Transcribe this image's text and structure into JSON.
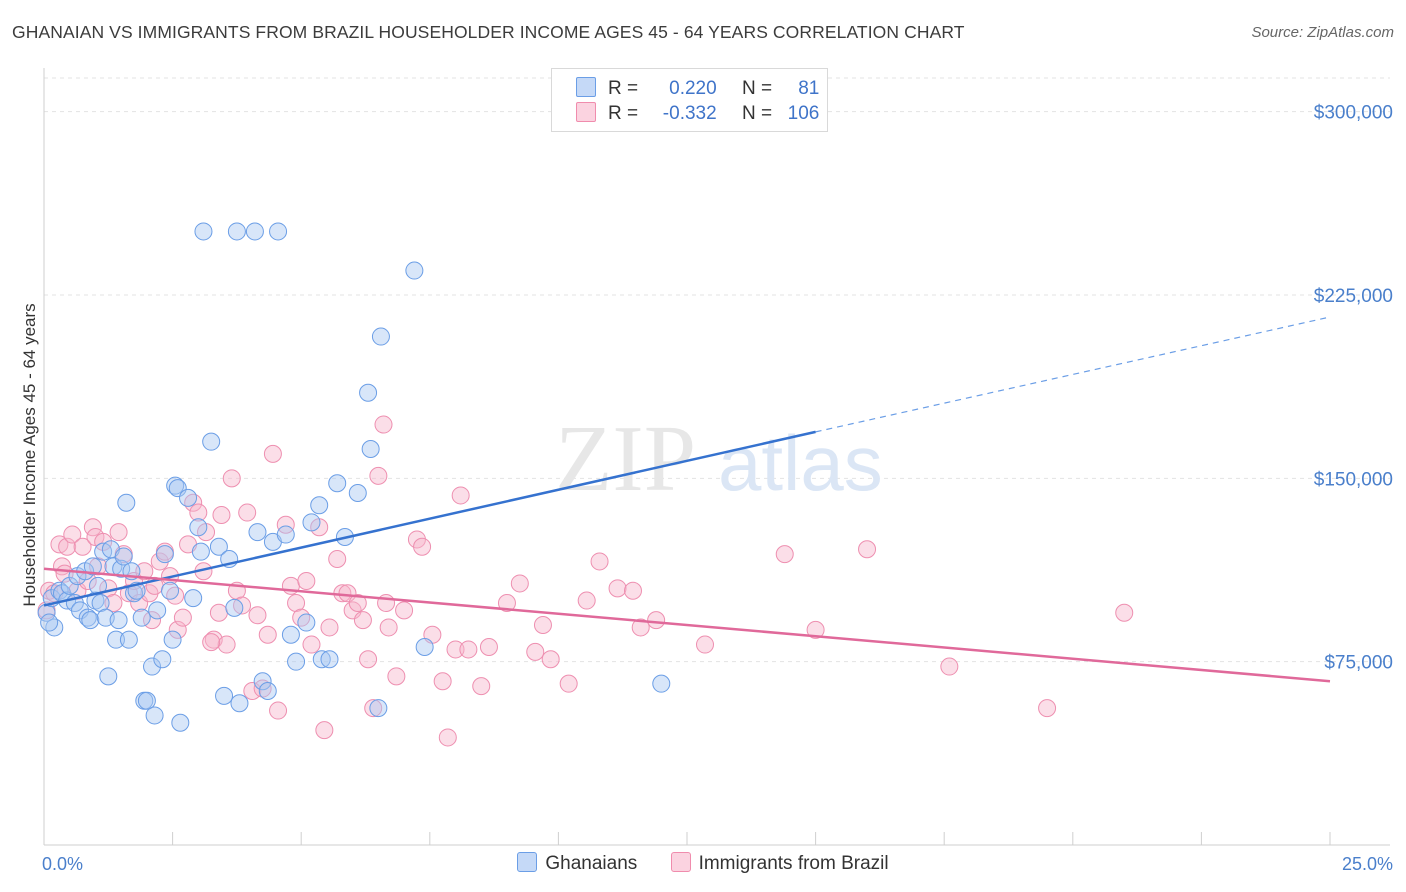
{
  "header": {
    "title": "GHANAIAN VS IMMIGRANTS FROM BRAZIL HOUSEHOLDER INCOME AGES 45 - 64 YEARS CORRELATION CHART",
    "source": "Source: ZipAtlas.com"
  },
  "watermark": {
    "zip": "ZIP",
    "atlas": "atlas"
  },
  "legend": {
    "rows": [
      {
        "r_label": "R =",
        "r_value": "0.220",
        "n_label": "N =",
        "n_value": "81",
        "color": "#a9c7f2"
      },
      {
        "r_label": "R =",
        "r_value": "-0.332",
        "n_label": "N =",
        "n_value": "106",
        "color": "#f7b6cb"
      }
    ]
  },
  "bottom_legend": [
    {
      "label": "Ghanaians",
      "color": "#a9c7f2"
    },
    {
      "label": "Immigrants from Brazil",
      "color": "#f7b6cb"
    }
  ],
  "chart_data": {
    "type": "scatter",
    "title": "GHANAIAN VS IMMIGRANTS FROM BRAZIL HOUSEHOLDER INCOME AGES 45 - 64 YEARS CORRELATION CHART",
    "ylabel": "Householder Income Ages 45 - 64 years",
    "xlabel": "",
    "xlim": [
      0,
      25
    ],
    "ylim": [
      0,
      315000
    ],
    "x_ticks": [
      "0.0%",
      "25.0%"
    ],
    "y_ticks": [
      {
        "value": 75000,
        "label": "$75,000"
      },
      {
        "value": 150000,
        "label": "$150,000"
      },
      {
        "value": 225000,
        "label": "$225,000"
      },
      {
        "value": 300000,
        "label": "$300,000"
      }
    ],
    "grid": true,
    "legend_position": "top-center",
    "series": [
      {
        "name": "Ghanaians",
        "color": "#6b9ee6",
        "trend": {
          "x_start": 0,
          "y_start": 98000,
          "x_end": 15,
          "y_end": 169000,
          "dashed_to_x": 25,
          "dashed_to_y": 216000
        },
        "points": [
          [
            0.05,
            95000
          ],
          [
            0.15,
            101000
          ],
          [
            0.2,
            89000
          ],
          [
            0.3,
            104000
          ],
          [
            0.35,
            103000
          ],
          [
            0.45,
            100000
          ],
          [
            0.5,
            106000
          ],
          [
            0.6,
            99000
          ],
          [
            0.65,
            110000
          ],
          [
            0.7,
            96000
          ],
          [
            0.8,
            112000
          ],
          [
            0.85,
            93000
          ],
          [
            0.9,
            92000
          ],
          [
            0.95,
            114000
          ],
          [
            1.0,
            100000
          ],
          [
            1.05,
            106000
          ],
          [
            1.1,
            99000
          ],
          [
            1.15,
            120000
          ],
          [
            1.2,
            93000
          ],
          [
            1.25,
            69000
          ],
          [
            1.3,
            121000
          ],
          [
            1.35,
            114000
          ],
          [
            1.4,
            84000
          ],
          [
            1.45,
            92000
          ],
          [
            1.5,
            113000
          ],
          [
            1.55,
            118000
          ],
          [
            1.6,
            140000
          ],
          [
            1.65,
            84000
          ],
          [
            1.7,
            112000
          ],
          [
            1.75,
            103000
          ],
          [
            1.8,
            104000
          ],
          [
            1.9,
            93000
          ],
          [
            1.95,
            59000
          ],
          [
            2.0,
            59000
          ],
          [
            2.1,
            73000
          ],
          [
            2.15,
            53000
          ],
          [
            2.2,
            96000
          ],
          [
            2.3,
            76000
          ],
          [
            2.35,
            119000
          ],
          [
            2.45,
            104000
          ],
          [
            2.5,
            84000
          ],
          [
            2.55,
            147000
          ],
          [
            2.6,
            146000
          ],
          [
            2.65,
            50000
          ],
          [
            2.8,
            142000
          ],
          [
            2.9,
            101000
          ],
          [
            3.0,
            130000
          ],
          [
            3.05,
            120000
          ],
          [
            3.1,
            251000
          ],
          [
            3.25,
            165000
          ],
          [
            3.4,
            122000
          ],
          [
            3.5,
            61000
          ],
          [
            3.6,
            117000
          ],
          [
            3.7,
            97000
          ],
          [
            3.75,
            251000
          ],
          [
            3.8,
            58000
          ],
          [
            4.1,
            251000
          ],
          [
            4.15,
            128000
          ],
          [
            4.25,
            67000
          ],
          [
            4.35,
            63000
          ],
          [
            4.45,
            124000
          ],
          [
            4.55,
            251000
          ],
          [
            4.7,
            127000
          ],
          [
            4.8,
            86000
          ],
          [
            4.9,
            75000
          ],
          [
            5.1,
            91000
          ],
          [
            5.2,
            132000
          ],
          [
            5.35,
            139000
          ],
          [
            5.4,
            76000
          ],
          [
            5.55,
            76000
          ],
          [
            5.7,
            148000
          ],
          [
            5.85,
            126000
          ],
          [
            6.1,
            144000
          ],
          [
            6.3,
            185000
          ],
          [
            6.35,
            162000
          ],
          [
            6.55,
            208000
          ],
          [
            6.5,
            56000
          ],
          [
            7.2,
            235000
          ],
          [
            7.4,
            81000
          ],
          [
            12.0,
            66000
          ],
          [
            0.1,
            91000
          ]
        ]
      },
      {
        "name": "Immigrants from Brazil",
        "color": "#f08cad",
        "trend": {
          "x_start": 0,
          "y_start": 113000,
          "x_end": 25,
          "y_end": 67000
        },
        "points": [
          [
            0.05,
            96000
          ],
          [
            0.1,
            104000
          ],
          [
            0.2,
            103000
          ],
          [
            0.3,
            123000
          ],
          [
            0.35,
            114000
          ],
          [
            0.4,
            111000
          ],
          [
            0.45,
            122000
          ],
          [
            0.55,
            127000
          ],
          [
            0.65,
            104000
          ],
          [
            0.75,
            122000
          ],
          [
            0.85,
            108000
          ],
          [
            0.95,
            130000
          ],
          [
            1.0,
            126000
          ],
          [
            1.05,
            114000
          ],
          [
            1.15,
            124000
          ],
          [
            1.25,
            105000
          ],
          [
            1.35,
            99000
          ],
          [
            1.45,
            128000
          ],
          [
            1.55,
            119000
          ],
          [
            1.65,
            103000
          ],
          [
            1.75,
            108000
          ],
          [
            1.85,
            99000
          ],
          [
            1.95,
            112000
          ],
          [
            2.05,
            103000
          ],
          [
            2.15,
            106000
          ],
          [
            2.25,
            116000
          ],
          [
            2.35,
            120000
          ],
          [
            2.45,
            110000
          ],
          [
            2.55,
            102000
          ],
          [
            2.6,
            88000
          ],
          [
            2.7,
            93000
          ],
          [
            2.8,
            123000
          ],
          [
            2.9,
            140000
          ],
          [
            3.0,
            136000
          ],
          [
            3.1,
            112000
          ],
          [
            3.15,
            128000
          ],
          [
            3.3,
            84000
          ],
          [
            3.4,
            95000
          ],
          [
            3.45,
            135000
          ],
          [
            3.55,
            82000
          ],
          [
            3.65,
            150000
          ],
          [
            3.75,
            104000
          ],
          [
            3.85,
            98000
          ],
          [
            3.95,
            136000
          ],
          [
            4.05,
            63000
          ],
          [
            4.15,
            94000
          ],
          [
            4.25,
            64000
          ],
          [
            4.35,
            86000
          ],
          [
            4.45,
            160000
          ],
          [
            4.55,
            55000
          ],
          [
            4.7,
            131000
          ],
          [
            4.8,
            106000
          ],
          [
            4.9,
            99000
          ],
          [
            5.0,
            93000
          ],
          [
            5.1,
            108000
          ],
          [
            5.2,
            82000
          ],
          [
            5.35,
            130000
          ],
          [
            5.45,
            47000
          ],
          [
            5.55,
            89000
          ],
          [
            5.7,
            117000
          ],
          [
            5.8,
            103000
          ],
          [
            5.9,
            103000
          ],
          [
            6.0,
            96000
          ],
          [
            6.1,
            99000
          ],
          [
            6.2,
            92000
          ],
          [
            6.3,
            76000
          ],
          [
            6.4,
            56000
          ],
          [
            6.5,
            151000
          ],
          [
            6.6,
            172000
          ],
          [
            6.7,
            89000
          ],
          [
            6.85,
            69000
          ],
          [
            7.0,
            96000
          ],
          [
            7.25,
            125000
          ],
          [
            7.35,
            122000
          ],
          [
            7.55,
            86000
          ],
          [
            7.75,
            67000
          ],
          [
            7.85,
            44000
          ],
          [
            8.0,
            80000
          ],
          [
            8.1,
            143000
          ],
          [
            8.25,
            80000
          ],
          [
            8.5,
            65000
          ],
          [
            8.65,
            81000
          ],
          [
            9.0,
            99000
          ],
          [
            9.25,
            107000
          ],
          [
            9.55,
            79000
          ],
          [
            9.7,
            90000
          ],
          [
            9.85,
            76000
          ],
          [
            10.2,
            66000
          ],
          [
            10.55,
            100000
          ],
          [
            10.8,
            116000
          ],
          [
            11.15,
            105000
          ],
          [
            11.45,
            104000
          ],
          [
            11.6,
            89000
          ],
          [
            11.9,
            92000
          ],
          [
            12.85,
            82000
          ],
          [
            14.4,
            119000
          ],
          [
            15.0,
            88000
          ],
          [
            16.0,
            121000
          ],
          [
            17.6,
            73000
          ],
          [
            19.5,
            56000
          ],
          [
            21.0,
            95000
          ],
          [
            3.25,
            83000
          ],
          [
            2.1,
            92000
          ],
          [
            6.65,
            99000
          ]
        ]
      }
    ]
  }
}
